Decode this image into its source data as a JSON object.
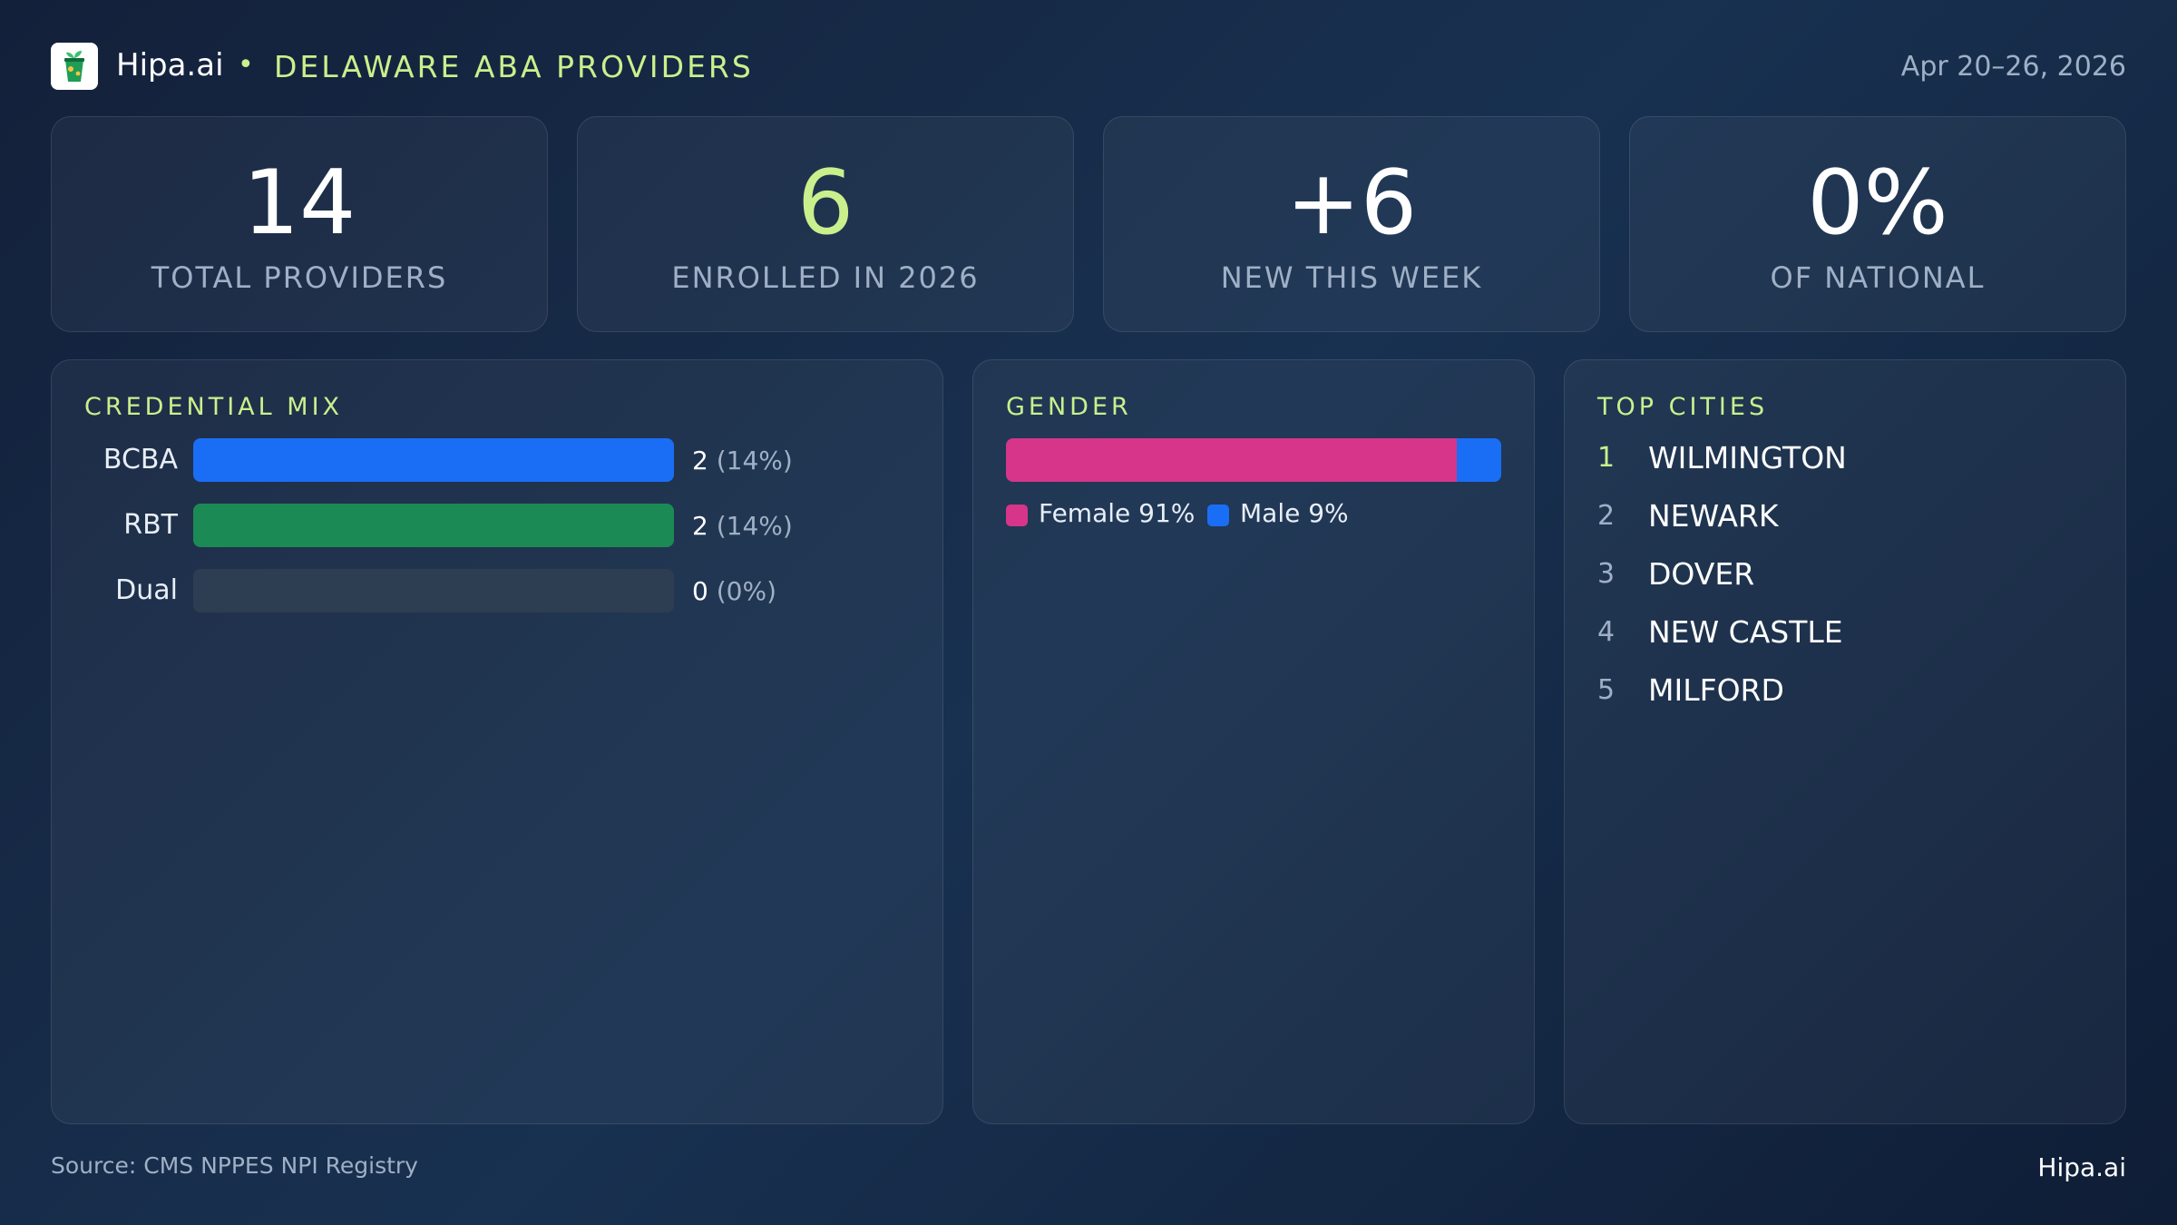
{
  "header": {
    "brand": "Hipa.ai",
    "separator": "•",
    "title": "DELAWARE ABA PROVIDERS",
    "date_range": "Apr 20–26, 2026",
    "logo_icon": "cup-plant-icon"
  },
  "stats": [
    {
      "value": "14",
      "label": "TOTAL PROVIDERS"
    },
    {
      "value": "6",
      "label": "ENROLLED IN 2026"
    },
    {
      "value": "+6",
      "label": "NEW THIS WEEK"
    },
    {
      "value": "0%",
      "label": "OF NATIONAL"
    }
  ],
  "credential_mix": {
    "title": "CREDENTIAL MIX",
    "rows": [
      {
        "label": "BCBA",
        "count": "2",
        "pct": "(14%)",
        "fill": 1.0,
        "color": "#1a6ef5"
      },
      {
        "label": "RBT",
        "count": "2",
        "pct": "(14%)",
        "fill": 1.0,
        "color": "#1b8a55"
      },
      {
        "label": "Dual",
        "count": "0",
        "pct": "(0%)",
        "fill": 0.0,
        "color": "#2d3d52"
      }
    ]
  },
  "gender": {
    "title": "GENDER",
    "female_share": 0.91,
    "male_share": 0.09,
    "female_color": "#d6358a",
    "male_color": "#1a6ef5",
    "legend": {
      "female": "Female 91%",
      "male": "Male 9%"
    }
  },
  "top_cities": {
    "title": "TOP CITIES",
    "items": [
      {
        "rank": "1",
        "name": "WILMINGTON"
      },
      {
        "rank": "2",
        "name": "NEWARK"
      },
      {
        "rank": "3",
        "name": "DOVER"
      },
      {
        "rank": "4",
        "name": "NEW CASTLE"
      },
      {
        "rank": "5",
        "name": "MILFORD"
      }
    ]
  },
  "footer": {
    "source": "Source: CMS NPPES NPI Registry",
    "brand": "Hipa.ai"
  },
  "colors": {
    "accent": "#c9f08c",
    "muted": "#9fb0c6"
  }
}
